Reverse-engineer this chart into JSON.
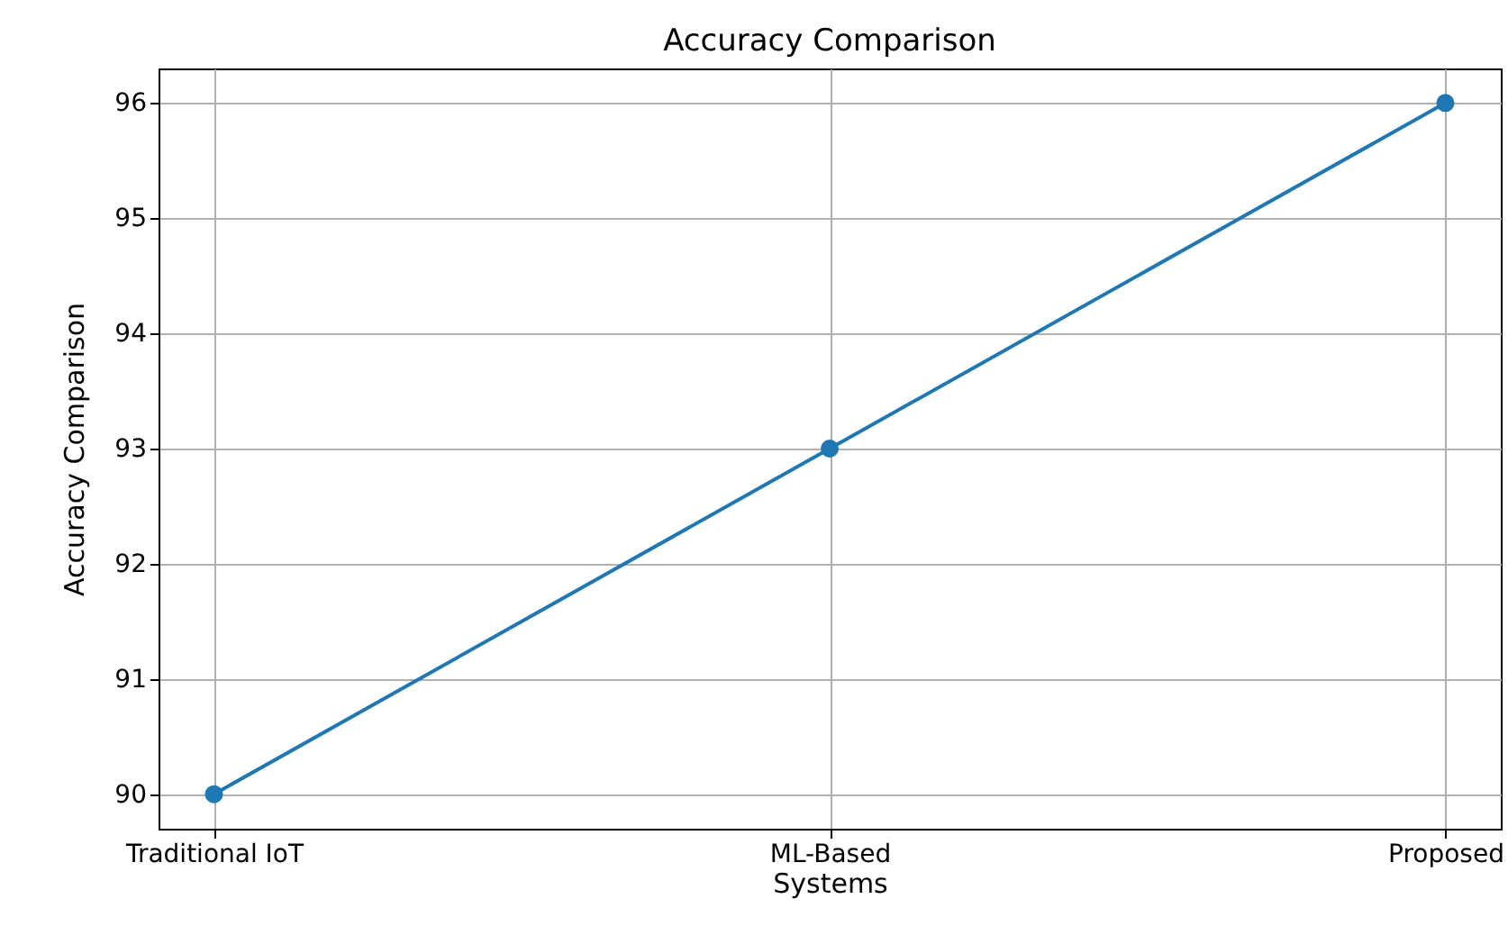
{
  "chart_data": {
    "type": "line",
    "title": "Accuracy Comparison",
    "xlabel": "Systems",
    "ylabel": "Accuracy Comparison",
    "categories": [
      "Traditional IoT",
      "ML-Based",
      "Proposed"
    ],
    "series": [
      {
        "color": "#1f77b4",
        "values": [
          90,
          93,
          96
        ]
      }
    ],
    "ylim": [
      89.7,
      96.3
    ],
    "yticks": [
      90,
      91,
      92,
      93,
      94,
      95,
      96
    ],
    "grid": true,
    "marker": "circle"
  }
}
